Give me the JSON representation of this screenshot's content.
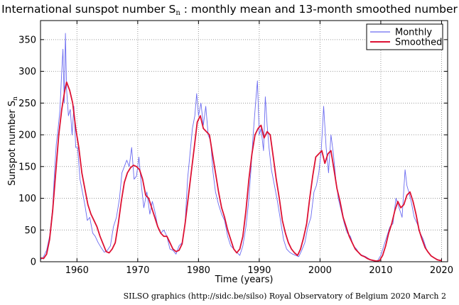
{
  "title": {
    "main": "International sunspot number S",
    "subscript": "n",
    "rest": " : monthly mean and 13-month smoothed number"
  },
  "credit": "SILSO graphics (http://sidc.be/silso)  Royal Observatory of Belgium  2020 March 2",
  "colors": {
    "monthly": "#6b6bf0",
    "smoothed": "#dd1133",
    "grid": "#999999"
  },
  "chart_data": {
    "type": "line",
    "xlabel": "Time (years)",
    "ylabel": "Sunspot number S",
    "ylabel_sub": "n",
    "xlim": [
      1954,
      2021
    ],
    "ylim": [
      0,
      380
    ],
    "x_ticks": [
      1960,
      1970,
      1980,
      1990,
      2000,
      2010,
      2020
    ],
    "y_ticks": [
      0,
      50,
      100,
      150,
      200,
      250,
      300,
      350
    ],
    "grid": true,
    "legend_position": "top-right",
    "series": [
      {
        "name": "Monthly",
        "kind": "monthly",
        "x": [
          1954.0,
          1954.5,
          1955.0,
          1955.5,
          1956.0,
          1956.3,
          1956.6,
          1956.9,
          1957.2,
          1957.5,
          1957.7,
          1957.9,
          1958.1,
          1958.3,
          1958.6,
          1958.9,
          1959.2,
          1959.5,
          1959.8,
          1960.1,
          1960.5,
          1960.9,
          1961.3,
          1961.7,
          1962.1,
          1962.6,
          1963.0,
          1963.5,
          1964.0,
          1964.5,
          1965.0,
          1965.5,
          1966.0,
          1966.5,
          1967.0,
          1967.4,
          1967.8,
          1968.2,
          1968.6,
          1969.0,
          1969.4,
          1969.8,
          1970.2,
          1970.6,
          1971.0,
          1971.5,
          1972.0,
          1972.4,
          1972.8,
          1973.3,
          1973.8,
          1974.3,
          1974.8,
          1975.3,
          1975.8,
          1976.3,
          1976.8,
          1977.3,
          1977.8,
          1978.2,
          1978.6,
          1979.0,
          1979.4,
          1979.7,
          1980.0,
          1980.4,
          1980.8,
          1981.2,
          1981.6,
          1982.0,
          1982.4,
          1982.8,
          1983.3,
          1983.8,
          1984.3,
          1984.8,
          1985.3,
          1985.8,
          1986.3,
          1986.8,
          1987.3,
          1987.8,
          1988.2,
          1988.6,
          1989.0,
          1989.4,
          1989.7,
          1990.0,
          1990.3,
          1990.7,
          1991.0,
          1991.3,
          1991.6,
          1992.0,
          1992.5,
          1993.0,
          1993.5,
          1994.0,
          1994.5,
          1995.0,
          1995.5,
          1996.0,
          1996.5,
          1997.0,
          1997.5,
          1998.0,
          1998.5,
          1999.0,
          1999.4,
          1999.8,
          2000.2,
          2000.6,
          2001.0,
          2001.4,
          2001.8,
          2002.2,
          2002.6,
          2003.0,
          2003.5,
          2004.0,
          2004.5,
          2005.0,
          2005.5,
          2006.0,
          2006.5,
          2007.0,
          2007.5,
          2008.0,
          2008.5,
          2009.0,
          2009.5,
          2010.0,
          2010.5,
          2011.0,
          2011.5,
          2012.0,
          2012.5,
          2013.0,
          2013.5,
          2014.0,
          2014.3,
          2014.6,
          2015.0,
          2015.5,
          2016.0,
          2016.5,
          2017.0,
          2017.5,
          2018.0,
          2018.5,
          2019.0,
          2019.5,
          2020.0
        ],
        "y": [
          3,
          8,
          18,
          40,
          85,
          140,
          185,
          210,
          240,
          300,
          335,
          250,
          360,
          270,
          230,
          240,
          200,
          245,
          180,
          180,
          130,
          110,
          90,
          65,
          70,
          45,
          40,
          30,
          22,
          15,
          18,
          25,
          55,
          70,
          100,
          140,
          150,
          160,
          150,
          180,
          130,
          135,
          165,
          120,
          85,
          110,
          75,
          95,
          80,
          55,
          45,
          50,
          40,
          20,
          18,
          12,
          25,
          30,
          60,
          130,
          170,
          210,
          230,
          265,
          230,
          250,
          215,
          245,
          200,
          190,
          140,
          110,
          90,
          75,
          65,
          40,
          25,
          20,
          15,
          10,
          25,
          55,
          90,
          140,
          200,
          250,
          285,
          200,
          210,
          175,
          260,
          215,
          180,
          145,
          120,
          95,
          65,
          35,
          20,
          15,
          12,
          10,
          8,
          18,
          30,
          55,
          70,
          110,
          120,
          140,
          175,
          245,
          180,
          140,
          200,
          170,
          130,
          100,
          80,
          60,
          45,
          40,
          25,
          20,
          12,
          10,
          8,
          5,
          2,
          1,
          2,
          10,
          25,
          40,
          55,
          60,
          100,
          85,
          70,
          145,
          120,
          110,
          95,
          70,
          60,
          45,
          35,
          20,
          12,
          8,
          5,
          3,
          2
        ]
      },
      {
        "name": "Smoothed",
        "kind": "smoothed",
        "x": [
          1954.0,
          1954.5,
          1955.0,
          1955.5,
          1956.0,
          1956.5,
          1957.0,
          1957.5,
          1958.0,
          1958.3,
          1958.8,
          1959.3,
          1959.8,
          1960.3,
          1960.8,
          1961.3,
          1961.8,
          1962.3,
          1962.8,
          1963.3,
          1963.8,
          1964.3,
          1964.8,
          1965.3,
          1965.8,
          1966.3,
          1966.8,
          1967.3,
          1967.8,
          1968.3,
          1968.8,
          1969.3,
          1969.8,
          1970.3,
          1970.8,
          1971.3,
          1971.8,
          1972.3,
          1972.8,
          1973.3,
          1973.8,
          1974.3,
          1974.8,
          1975.3,
          1975.8,
          1976.3,
          1976.8,
          1977.3,
          1977.8,
          1978.3,
          1978.8,
          1979.3,
          1979.8,
          1980.3,
          1980.8,
          1981.3,
          1981.8,
          1982.3,
          1982.8,
          1983.3,
          1983.8,
          1984.3,
          1984.8,
          1985.3,
          1985.8,
          1986.3,
          1986.8,
          1987.3,
          1987.8,
          1988.3,
          1988.8,
          1989.3,
          1989.8,
          1990.3,
          1990.8,
          1991.3,
          1991.8,
          1992.3,
          1992.8,
          1993.3,
          1993.8,
          1994.3,
          1994.8,
          1995.3,
          1995.8,
          1996.3,
          1996.8,
          1997.3,
          1997.8,
          1998.3,
          1998.8,
          1999.3,
          1999.8,
          2000.3,
          2000.8,
          2001.3,
          2001.8,
          2002.3,
          2002.8,
          2003.3,
          2003.8,
          2004.3,
          2004.8,
          2005.3,
          2005.8,
          2006.3,
          2006.8,
          2007.3,
          2007.8,
          2008.3,
          2008.8,
          2009.3,
          2009.8,
          2010.3,
          2010.8,
          2011.3,
          2011.8,
          2012.3,
          2012.8,
          2013.3,
          2013.8,
          2014.3,
          2014.8,
          2015.3,
          2015.8,
          2016.3,
          2016.8,
          2017.3,
          2017.8,
          2018.3,
          2018.8,
          2019.3,
          2019.8,
          2020.0
        ],
        "y": [
          6,
          5,
          12,
          35,
          80,
          140,
          200,
          240,
          270,
          283,
          270,
          250,
          210,
          180,
          140,
          115,
          90,
          75,
          65,
          55,
          40,
          28,
          16,
          14,
          20,
          30,
          60,
          95,
          125,
          140,
          148,
          152,
          150,
          145,
          130,
          105,
          100,
          85,
          70,
          55,
          45,
          40,
          40,
          30,
          20,
          16,
          18,
          28,
          60,
          100,
          140,
          180,
          220,
          230,
          210,
          205,
          200,
          170,
          140,
          110,
          85,
          70,
          50,
          35,
          20,
          14,
          20,
          40,
          80,
          130,
          170,
          200,
          210,
          215,
          195,
          205,
          200,
          165,
          130,
          100,
          65,
          45,
          30,
          20,
          14,
          10,
          20,
          38,
          60,
          100,
          135,
          165,
          170,
          175,
          155,
          170,
          175,
          145,
          115,
          95,
          70,
          55,
          40,
          30,
          20,
          15,
          10,
          8,
          5,
          3,
          2,
          1,
          2,
          10,
          25,
          45,
          60,
          80,
          95,
          85,
          90,
          105,
          110,
          95,
          75,
          50,
          35,
          22,
          15,
          9,
          6,
          3,
          2,
          2
        ]
      }
    ]
  }
}
